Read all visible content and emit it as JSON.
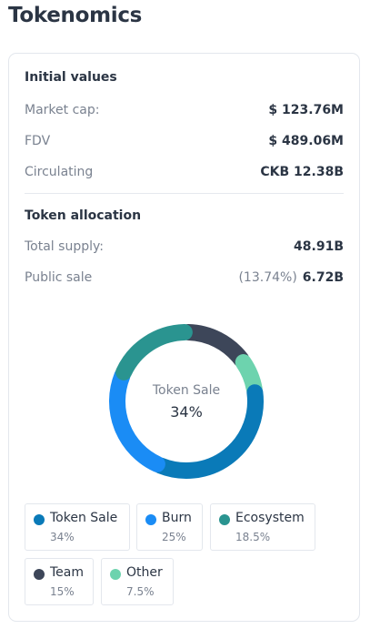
{
  "page": {
    "title": "Tokenomics"
  },
  "initial_values": {
    "title": "Initial values",
    "rows": [
      {
        "label": "Market cap:",
        "value": "$ 123.76M"
      },
      {
        "label": "FDV",
        "value": "$ 489.06M"
      },
      {
        "label": "Circulating",
        "value": "CKB 12.38B"
      }
    ]
  },
  "token_allocation": {
    "title": "Token allocation",
    "total_supply": {
      "label": "Total supply:",
      "value": "48.91B"
    },
    "public_sale": {
      "label": "Public sale",
      "percent": "(13.74%)",
      "value": "6.72B"
    }
  },
  "chart_data": {
    "type": "pie",
    "center_label": "Token Sale",
    "center_value": "34%",
    "slices": [
      {
        "name": "Token Sale",
        "value": 34,
        "color": "#0a7ab8"
      },
      {
        "name": "Burn",
        "value": 25,
        "color": "#1a8cf5"
      },
      {
        "name": "Ecosystem",
        "value": 18.5,
        "color": "#2a9490"
      },
      {
        "name": "Team",
        "value": 15,
        "color": "#3d4659"
      },
      {
        "name": "Other",
        "value": 7.5,
        "color": "#6dd3ae"
      }
    ]
  },
  "legend": [
    {
      "name": "Token Sale",
      "share": "34%",
      "color": "#0a7ab8"
    },
    {
      "name": "Burn",
      "share": "25%",
      "color": "#1a8cf5"
    },
    {
      "name": "Ecosystem",
      "share": "18.5%",
      "color": "#2a9490"
    },
    {
      "name": "Team",
      "share": "15%",
      "color": "#3d4659"
    },
    {
      "name": "Other",
      "share": "7.5%",
      "color": "#6dd3ae"
    }
  ]
}
